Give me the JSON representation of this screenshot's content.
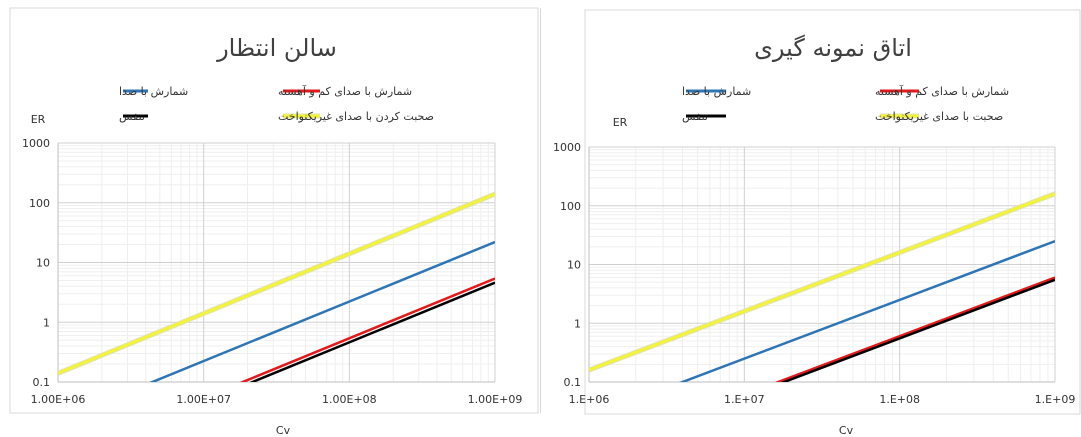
{
  "chart_data": [
    {
      "type": "line",
      "title": "سالن انتظار",
      "xlabel": "Cv",
      "ylabel": "ER",
      "x_scale": "log",
      "y_scale": "log",
      "xlim": [
        1000000,
        1000000000
      ],
      "ylim": [
        0.1,
        1000
      ],
      "x_tick_labels": [
        "1.00E+06",
        "1.00E+07",
        "1.00E+08",
        "1.00E+09"
      ],
      "y_tick_labels": [
        "0.1",
        "1",
        "10",
        "100",
        "1000"
      ],
      "grid": true,
      "series": [
        {
          "name": "شمارش با صدا",
          "color": "#2e75b6",
          "x": [
            4000000,
            1000000000
          ],
          "y": [
            0.09,
            22
          ]
        },
        {
          "name": "شمارش با صدای کم و آهسته",
          "color": "#e31a1c",
          "x": [
            18000000,
            1000000000
          ],
          "y": [
            0.097,
            5.4
          ]
        },
        {
          "name": "صحبت کردن با صدای غیریکنواخت",
          "color": "#f3f33a",
          "x": [
            1000000,
            1000000000
          ],
          "y": [
            0.14,
            140
          ]
        },
        {
          "name": "تنفس",
          "color": "#000000",
          "x": [
            21000000,
            1000000000
          ],
          "y": [
            0.097,
            4.6
          ]
        }
      ]
    },
    {
      "type": "line",
      "title": "اتاق نمونه گیری",
      "xlabel": "Cv",
      "ylabel": "ER",
      "x_scale": "log",
      "y_scale": "log",
      "xlim": [
        1000000,
        1000000000
      ],
      "ylim": [
        0.1,
        1000
      ],
      "x_tick_labels": [
        "1.E+06",
        "1.E+07",
        "1.E+08",
        "1.E+09"
      ],
      "y_tick_labels": [
        "0.1",
        "1",
        "10",
        "100",
        "1000"
      ],
      "grid": true,
      "series": [
        {
          "name": "شمارش با صدا",
          "color": "#2e75b6",
          "x": [
            3600000,
            1000000000
          ],
          "y": [
            0.09,
            25
          ]
        },
        {
          "name": "شمارش با صدای کم و آهسته",
          "color": "#e31a1c",
          "x": [
            16000000,
            1000000000
          ],
          "y": [
            0.097,
            6
          ]
        },
        {
          "name": "صحبت با صدای غیریکنواخت",
          "color": "#f3f33a",
          "x": [
            1000000,
            1000000000
          ],
          "y": [
            0.16,
            160
          ]
        },
        {
          "name": "تنفس",
          "color": "#000000",
          "x": [
            17500000,
            1000000000
          ],
          "y": [
            0.097,
            5.5
          ]
        }
      ]
    }
  ]
}
